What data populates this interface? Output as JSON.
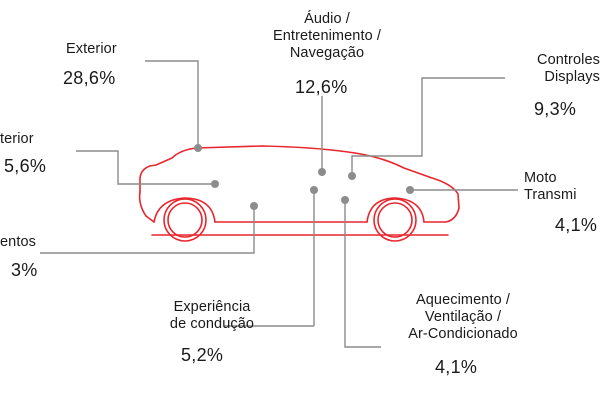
{
  "callouts": [
    {
      "id": "exterior",
      "label": "Exterior",
      "value": "28,6%"
    },
    {
      "id": "interior",
      "label": "terior",
      "value": "5,6%"
    },
    {
      "id": "assentos",
      "label": "entos",
      "value": "3%"
    },
    {
      "id": "experiencia",
      "label": "Experiência\nde condução",
      "value": "5,2%"
    },
    {
      "id": "audio",
      "label": "Áudio /\nEntretenimento /\nNavegação",
      "value": "12,6%"
    },
    {
      "id": "aquecimento",
      "label": "Aquecimento /\nVentilação /\nAr-Condicionado",
      "value": "4,1%"
    },
    {
      "id": "controles",
      "label": "Controles\nDisplays",
      "value": "9,3%"
    },
    {
      "id": "motor",
      "label": "Moto\nTransmi",
      "value": "4,1%"
    }
  ],
  "colors": {
    "car_outline": "#e8262d",
    "leader_line": "#8c8c8c",
    "text": "#1a1a1a"
  }
}
